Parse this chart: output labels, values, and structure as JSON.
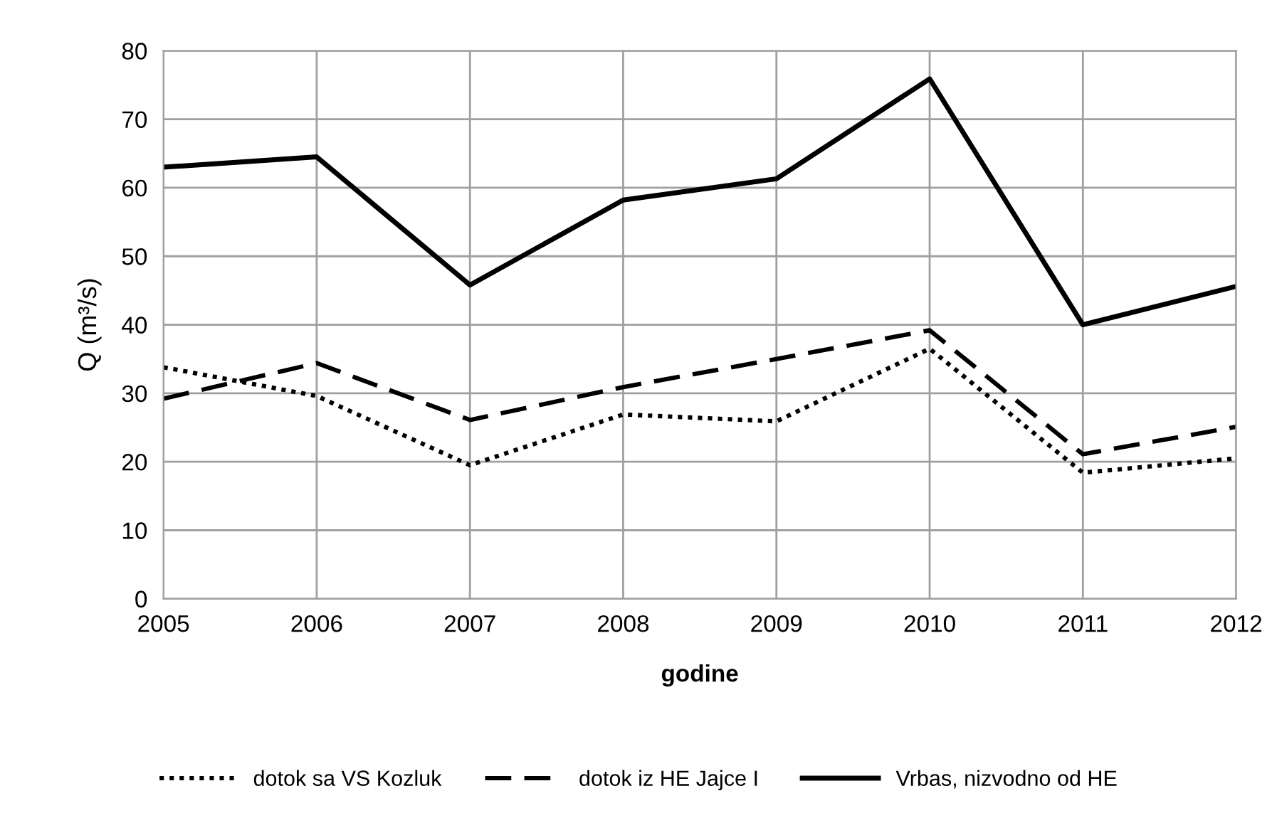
{
  "chart_data": {
    "type": "line",
    "xlabel": "godine",
    "ylabel": "Q (m³/s)",
    "x": [
      2005,
      2006,
      2007,
      2008,
      2009,
      2010,
      2011,
      2012
    ],
    "xlim": [
      2005,
      2012
    ],
    "xticks": [
      2005,
      2006,
      2007,
      2008,
      2009,
      2010,
      2011,
      2012
    ],
    "ylim": [
      0,
      80
    ],
    "yticks": [
      0,
      10,
      20,
      30,
      40,
      50,
      60,
      70,
      80
    ],
    "grid": true,
    "legend": "bottom",
    "marker": "none",
    "series": [
      {
        "name": "dotok sa VS Kozluk",
        "color": "#000000",
        "line_style": "dotted",
        "values": [
          33.8,
          29.6,
          19.5,
          26.9,
          25.9,
          36.5,
          18.4,
          20.5
        ]
      },
      {
        "name": "dotok iz HE Jajce I",
        "color": "#000000",
        "line_style": "dashed",
        "values": [
          29.2,
          34.4,
          26.1,
          30.9,
          35.0,
          39.2,
          21.1,
          25.1
        ]
      },
      {
        "name": "Vrbas, nizvodno od HE",
        "color": "#000000",
        "line_style": "solid",
        "values": [
          63.0,
          64.5,
          45.8,
          58.2,
          61.3,
          75.9,
          40.0,
          45.6
        ]
      }
    ]
  }
}
